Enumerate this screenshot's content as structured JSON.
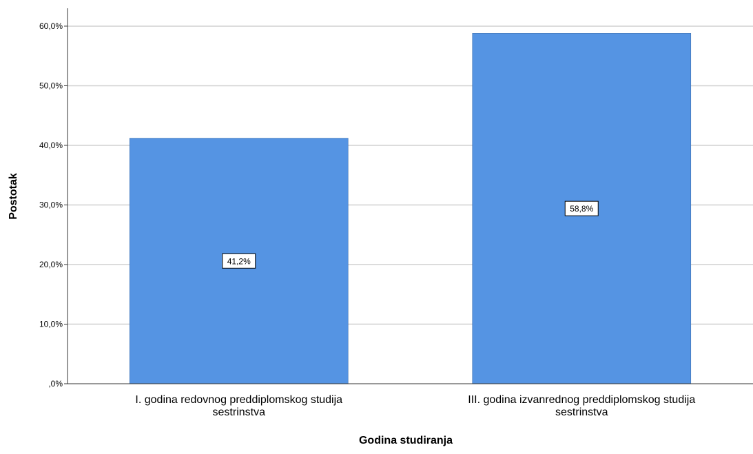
{
  "chart_data": {
    "type": "bar",
    "title": "",
    "xlabel": "Godina studiranja",
    "ylabel": "Postotak",
    "categories": [
      [
        "I. godina redovnog preddiplomskog studija",
        "sestrinstva"
      ],
      [
        "III. godina izvanrednog preddiplomskog studija",
        "sestrinstva"
      ]
    ],
    "values": [
      41.2,
      58.8
    ],
    "data_labels": [
      "41,2%",
      "58,8%"
    ],
    "ylim": [
      0,
      63
    ],
    "yticks": [
      0,
      10,
      20,
      30,
      40,
      50,
      60
    ],
    "ytick_labels": [
      ",0%",
      "10,0%",
      "20,0%",
      "30,0%",
      "40,0%",
      "50,0%",
      "60,0%"
    ],
    "grid": true,
    "legend": "none",
    "colors": {
      "bar": "#5594e3",
      "bar_edge": "#3d6fb0",
      "grid": "#d0d0d0",
      "axis": "#333333"
    }
  }
}
